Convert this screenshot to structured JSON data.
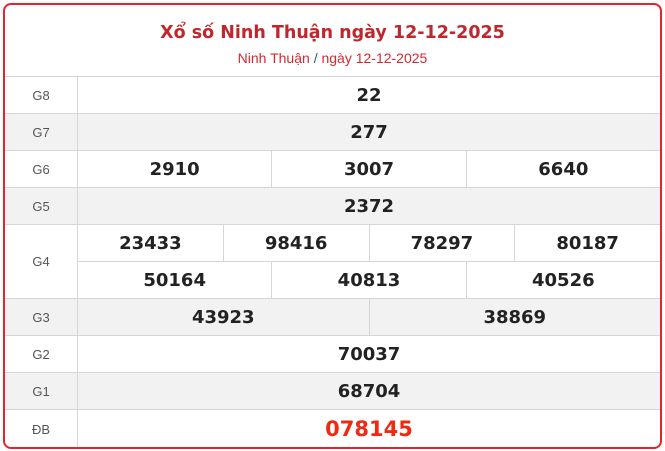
{
  "header": {
    "title": "Xổ số Ninh Thuận ngày 12-12-2025",
    "breadcrumb_province": "Ninh Thuận",
    "breadcrumb_sep": "/",
    "breadcrumb_date": "ngày 12-12-2025"
  },
  "prizes": [
    {
      "label": "G8",
      "lines": [
        [
          "22"
        ]
      ]
    },
    {
      "label": "G7",
      "lines": [
        [
          "277"
        ]
      ]
    },
    {
      "label": "G6",
      "lines": [
        [
          "2910",
          "3007",
          "6640"
        ]
      ]
    },
    {
      "label": "G5",
      "lines": [
        [
          "2372"
        ]
      ]
    },
    {
      "label": "G4",
      "lines": [
        [
          "23433",
          "98416",
          "78297",
          "80187"
        ],
        [
          "50164",
          "40813",
          "40526"
        ]
      ]
    },
    {
      "label": "G3",
      "lines": [
        [
          "43923",
          "38869"
        ]
      ]
    },
    {
      "label": "G2",
      "lines": [
        [
          "70037"
        ]
      ]
    },
    {
      "label": "G1",
      "lines": [
        [
          "68704"
        ]
      ]
    },
    {
      "label": "ĐB",
      "lines": [
        [
          "078145"
        ]
      ]
    }
  ],
  "colors": {
    "border": "#e8212b",
    "title": "#c0272d",
    "special": "#f02a12",
    "alt_row": "#f2f2f2"
  }
}
